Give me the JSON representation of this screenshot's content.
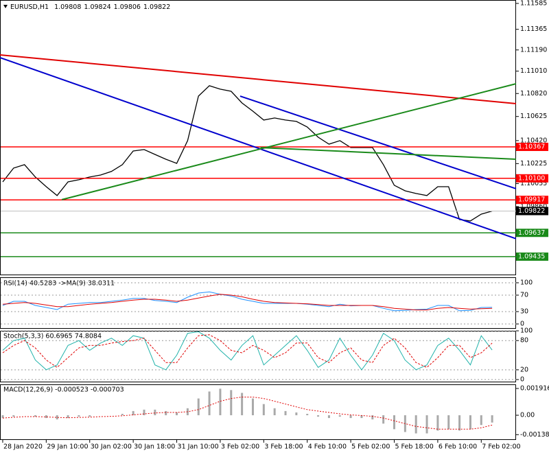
{
  "chart_data": [
    {
      "type": "line",
      "title": "EURUSD,H1",
      "ohlc": [
        1.09808,
        1.09824,
        1.09806,
        1.09822
      ],
      "categories": [
        "28 Jan 2020",
        null,
        null,
        null,
        "29 Jan 10:00",
        null,
        null,
        null,
        "30 Jan 02:00",
        null,
        null,
        null,
        "30 Jan 18:00",
        null,
        null,
        null,
        "31 Jan 10:00",
        null,
        null,
        null,
        "3 Feb 02:00",
        null,
        null,
        null,
        "3 Feb 18:00",
        null,
        null,
        null,
        "4 Feb 10:00",
        null,
        null,
        null,
        "5 Feb 02:00",
        null,
        null,
        null,
        "5 Feb 18:00",
        null,
        null,
        null,
        "6 Feb 10:00",
        null,
        null,
        null,
        "7 Feb 02:00",
        null
      ],
      "values": [
        1.1007,
        1.10187,
        1.10216,
        1.10111,
        1.10029,
        1.09954,
        1.1007,
        1.10088,
        1.10111,
        1.10128,
        1.10158,
        1.10216,
        1.10332,
        1.10344,
        1.10303,
        1.10262,
        1.10227,
        1.1042,
        1.10798,
        1.10886,
        1.10857,
        1.10839,
        1.1074,
        1.1067,
        1.10595,
        1.10612,
        1.10595,
        1.10583,
        1.10536,
        1.10449,
        1.1039,
        1.1042,
        1.10361,
        1.10361,
        1.10361,
        1.10216,
        1.10041,
        1.09994,
        1.09971,
        1.09954,
        1.10029,
        1.10029,
        1.0975,
        1.09738,
        1.09796,
        1.09822
      ],
      "color": "#000000",
      "xlim": [
        -0.25,
        47.2
      ],
      "ylim": [
        1.09283,
        1.11614
      ],
      "yticks": [
        1.11585,
        1.11365,
        {
          "value": 1.1119,
          "label": "1.11190"
        },
        {
          "value": 1.1101,
          "label": "1.11010"
        },
        {
          "value": 1.1082,
          "label": "1.10820"
        },
        1.10625,
        {
          "value": 1.1042,
          "label": "1.10420"
        },
        1.10225,
        1.10055,
        {
          "value": 1.0986,
          "label": "1.09860"
        }
      ],
      "levels": [
        {
          "value": 1.10367,
          "color": "#ff0000"
        },
        {
          "value": 1.101,
          "label": "1.10100",
          "color": "#ff0000"
        },
        {
          "value": 1.09917,
          "color": "#ff0000"
        },
        {
          "value": 1.09822,
          "color": "#000000",
          "line_color": "#c0c0c0"
        },
        {
          "value": 1.09637,
          "color": "#1a8a1a"
        },
        {
          "value": 1.09435,
          "color": "#1a8a1a"
        }
      ],
      "trendlines": [
        {
          "color": "#0000cd",
          "x": [
            -0.25,
            47.2
          ],
          "y": [
            1.11125,
            1.09587
          ]
        },
        {
          "color": "#0000cd",
          "x": [
            21.83,
            47.2
          ],
          "y": [
            1.10798,
            1.10012
          ]
        },
        {
          "color": "#e00000",
          "x": [
            -0.25,
            47.2
          ],
          "y": [
            1.11148,
            1.10734
          ]
        },
        {
          "color": "#1a8a1a",
          "x": [
            5.43,
            47.2
          ],
          "y": [
            1.09919,
            1.10903
          ]
        },
        {
          "color": "#1a8a1a",
          "x": [
            23.7,
            47.2
          ],
          "y": [
            1.10361,
            1.10262
          ]
        }
      ]
    },
    {
      "type": "line",
      "title": "RSI(14) 40.5283 ->MA(9) 38.0311",
      "series": [
        {
          "color": "#1e90ff",
          "values": [
            45,
            55,
            55,
            45,
            40,
            35,
            48,
            50,
            52,
            52,
            55,
            58,
            62,
            62,
            57,
            55,
            52,
            65,
            75,
            78,
            72,
            68,
            60,
            55,
            50,
            50,
            50,
            50,
            48,
            45,
            42,
            48,
            44,
            45,
            45,
            38,
            32,
            33,
            35,
            36,
            45,
            45,
            32,
            33,
            40,
            40.5283
          ]
        },
        {
          "color": "#e00000",
          "values": [
            48,
            50,
            52,
            50,
            46,
            42,
            42,
            45,
            48,
            50,
            52,
            55,
            58,
            60,
            60,
            58,
            55,
            58,
            63,
            68,
            72,
            70,
            66,
            60,
            55,
            52,
            51,
            50,
            49,
            47,
            45,
            45,
            45,
            45,
            45,
            42,
            38,
            36,
            34,
            34,
            38,
            40,
            38,
            36,
            37,
            38.0311
          ]
        }
      ],
      "ylim": [
        -10,
        113.3
      ],
      "yticks": [
        100,
        70,
        30,
        0
      ],
      "grid": true
    },
    {
      "type": "line",
      "title": "Stoch(5,3,3) 60.6965 74.8084",
      "series": [
        {
          "color": "#20b2aa",
          "values": [
            60,
            80,
            85,
            40,
            20,
            30,
            70,
            80,
            60,
            75,
            85,
            70,
            90,
            85,
            30,
            20,
            50,
            95,
            98,
            85,
            60,
            40,
            70,
            90,
            30,
            50,
            70,
            90,
            60,
            25,
            40,
            85,
            50,
            20,
            50,
            95,
            80,
            40,
            20,
            30,
            70,
            85,
            60,
            30,
            90,
            60.6965
          ]
        },
        {
          "color": "#e00000",
          "dash": true,
          "values": [
            55,
            70,
            80,
            65,
            40,
            25,
            45,
            65,
            70,
            70,
            75,
            78,
            80,
            85,
            60,
            35,
            35,
            65,
            90,
            92,
            80,
            60,
            55,
            70,
            60,
            45,
            55,
            75,
            75,
            45,
            35,
            55,
            65,
            40,
            35,
            70,
            85,
            65,
            35,
            25,
            45,
            70,
            70,
            45,
            55,
            74.8084
          ]
        }
      ],
      "ylim": [
        -4.2,
        100
      ],
      "yticks": [
        100,
        80,
        20,
        0
      ],
      "grid": true
    },
    {
      "type": "macd",
      "title": "MACD(12,26,9) -0.000523 -0.000703",
      "values": [
        -0.0002,
        -0.0001,
        0,
        -0.0001,
        -0.0002,
        -0.0003,
        -0.0002,
        -0.0001,
        -0.0001,
        0,
        0,
        0.0001,
        0.0003,
        0.0004,
        0.0004,
        0.0003,
        0.0002,
        0.0005,
        0.0012,
        0.0017,
        0.0019,
        0.0018,
        0.0016,
        0.0012,
        0.0008,
        0.0005,
        0.0003,
        0.0002,
        0.0001,
        -0.0001,
        -0.0002,
        -0.0001,
        -0.0002,
        -0.0002,
        -0.0003,
        -0.0006,
        -0.001,
        -0.0012,
        -0.0013,
        -0.0013,
        -0.0011,
        -0.001,
        -0.0011,
        -0.001,
        -0.0007,
        -0.000523
      ],
      "color": "#a9a9a9",
      "signal": {
        "color": "#e00000",
        "values": [
          -0.0002,
          -0.00015,
          -0.0001,
          -0.0001,
          -0.00012,
          -0.00016,
          -0.00018,
          -0.00016,
          -0.00014,
          -0.0001,
          -8e-05,
          -4e-05,
          3e-05,
          0.0001,
          0.00016,
          0.0002,
          0.0002,
          0.00025,
          0.0004,
          0.0007,
          0.001,
          0.0012,
          0.0013,
          0.0013,
          0.0012,
          0.001,
          0.0008,
          0.0006,
          0.0004,
          0.0003,
          0.0002,
          0.0001,
          3e-05,
          -2e-05,
          -8e-05,
          -0.0002,
          -0.0004,
          -0.0006,
          -0.0008,
          -0.0009,
          -0.001,
          -0.001,
          -0.001,
          -0.001,
          -0.0009,
          -0.000703
        ]
      },
      "ylim": [
        -0.00172,
        0.00221
      ],
      "yticks": [
        0.001916,
        {
          "value": 0,
          "label": "0.00"
        },
        -0.001389
      ]
    }
  ]
}
